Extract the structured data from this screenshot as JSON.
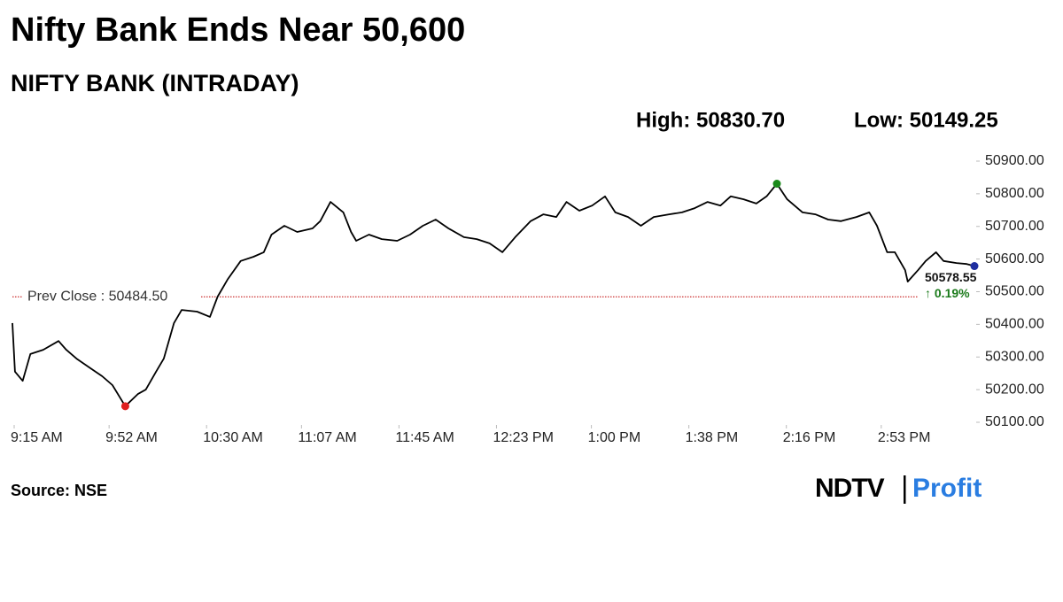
{
  "chart_data": {
    "type": "line",
    "title": "Nifty Bank Ends Near 50,600",
    "subtitle": "NIFTY BANK (INTRADAY)",
    "high_text": "High: 50830.70",
    "low_text": "Low: 50149.25",
    "source": "Source: NSE",
    "logo": {
      "brand": "NDTV",
      "product": "Profit"
    },
    "prev_close": {
      "value": 50484.5,
      "label": "Prev Close : 50484.50",
      "color": "#c00000"
    },
    "last_value_label": "50578.55",
    "change_label": "↑ 0.19%",
    "change_color": "#1a7a1a",
    "low_color": "#e02020",
    "high_color": "#1a8a1a",
    "last_color": "#1f2fa0",
    "line_color": "#000000",
    "xlim": [
      "9:15 AM",
      "3:30 PM"
    ],
    "xticks": [
      "9:15 AM",
      "9:52 AM",
      "10:30 AM",
      "11:07 AM",
      "11:45 AM",
      "12:23 PM",
      "1:00 PM",
      "1:38 PM",
      "2:16 PM",
      "2:53 PM"
    ],
    "ylim": [
      50100,
      50900
    ],
    "yticks": [
      {
        "value": 50100,
        "label": "50100.00"
      },
      {
        "value": 50200,
        "label": "50200.00"
      },
      {
        "value": 50300,
        "label": "50300.00"
      },
      {
        "value": 50400,
        "label": "50400.00"
      },
      {
        "value": 50500,
        "label": "50500.00"
      },
      {
        "value": 50600,
        "label": "50600.00"
      },
      {
        "value": 50700,
        "label": "50700.00"
      },
      {
        "value": 50800,
        "label": "50800.00"
      },
      {
        "value": 50900,
        "label": "50900.00"
      }
    ],
    "x": [
      "9:15 AM",
      "9:16 AM",
      "9:19 AM",
      "9:22 AM",
      "9:27 AM",
      "9:33 AM",
      "9:36 AM",
      "9:40 AM",
      "9:45 AM",
      "9:50 AM",
      "9:54 AM",
      "9:59 AM",
      "10:04 AM",
      "10:07 AM",
      "10:11 AM",
      "10:14 AM",
      "10:18 AM",
      "10:21 AM",
      "10:27 AM",
      "10:32 AM",
      "10:35 AM",
      "10:39 AM",
      "10:44 AM",
      "10:49 AM",
      "10:53 AM",
      "10:56 AM",
      "11:01 AM",
      "11:06 AM",
      "11:12 AM",
      "11:15 AM",
      "11:19 AM",
      "11:24 AM",
      "11:27 AM",
      "11:29 AM",
      "11:34 AM",
      "11:39 AM",
      "11:45 AM",
      "11:50 AM",
      "11:55 AM",
      "12:00 PM",
      "12:05 PM",
      "12:11 PM",
      "12:16 PM",
      "12:21 PM",
      "12:26 PM",
      "12:31 PM",
      "12:37 PM",
      "12:42 PM",
      "12:47 PM",
      "12:51 PM",
      "12:56 PM",
      "1:01 PM",
      "1:06 PM",
      "1:10 PM",
      "1:15 PM",
      "1:20 PM",
      "1:25 PM",
      "1:31 PM",
      "1:36 PM",
      "1:41 PM",
      "1:46 PM",
      "1:51 PM",
      "1:55 PM",
      "2:00 PM",
      "2:05 PM",
      "2:09 PM",
      "2:13 PM",
      "2:17 PM",
      "2:23 PM",
      "2:28 PM",
      "2:33 PM",
      "2:38 PM",
      "2:44 PM",
      "2:49 PM",
      "2:52 PM",
      "2:56 PM",
      "2:59 PM",
      "3:03 PM",
      "3:04 PM",
      "3:08 PM",
      "3:11 PM",
      "3:15 PM",
      "3:18 PM",
      "3:23 PM",
      "3:27 PM",
      "3:30 PM"
    ],
    "values": [
      50404,
      50255,
      50227,
      50309,
      50322,
      50349,
      50322,
      50295,
      50268,
      50241,
      50214,
      50149.25,
      50187,
      50200,
      50255,
      50295,
      50404,
      50444,
      50439,
      50423,
      50485,
      50539,
      50594,
      50607,
      50621,
      50675,
      50702,
      50683,
      50694,
      50716,
      50775,
      50743,
      50683,
      50656,
      50675,
      50661,
      50656,
      50675,
      50702,
      50721,
      50694,
      50667,
      50661,
      50648,
      50621,
      50667,
      50716,
      50737,
      50729,
      50775,
      50748,
      50764,
      50792,
      50743,
      50729,
      50702,
      50729,
      50737,
      50743,
      50756,
      50775,
      50764,
      50792,
      50783,
      50770,
      50792,
      50830.7,
      50783,
      50743,
      50737,
      50721,
      50716,
      50729,
      50743,
      50702,
      50621,
      50621,
      50566,
      50531,
      50566,
      50594,
      50621,
      50594,
      50588,
      50585,
      50578.55
    ]
  }
}
